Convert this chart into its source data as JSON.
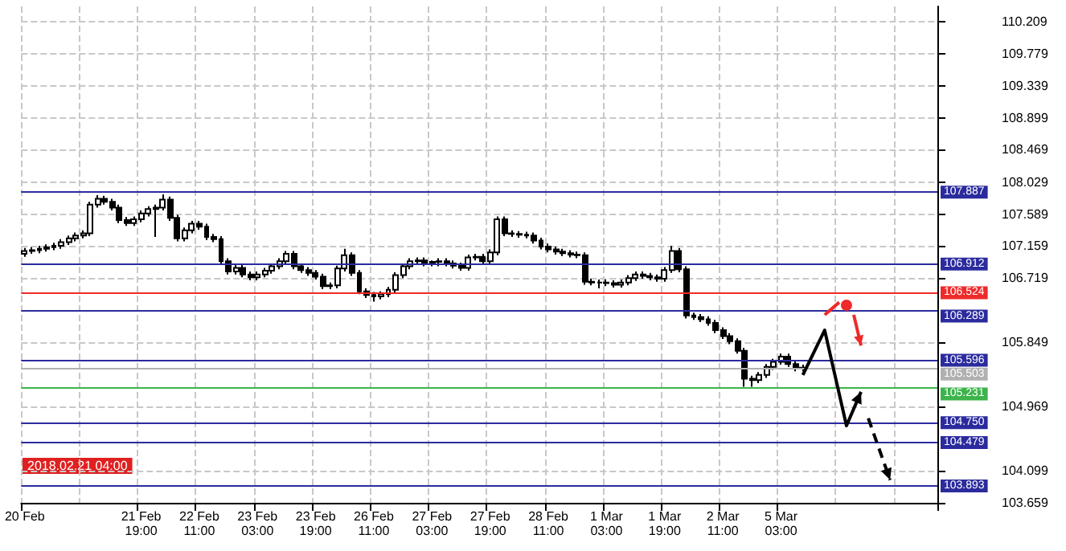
{
  "chart_data": {
    "type": "candlestick",
    "color": "#000000",
    "categories": [
      "20 Feb",
      null,
      null,
      null,
      null,
      null,
      null,
      null,
      null,
      null,
      null,
      null,
      null,
      null,
      null,
      null,
      "21 Feb 19:00",
      null,
      null,
      null,
      null,
      null,
      null,
      null,
      "22 Feb 11:00",
      null,
      null,
      null,
      null,
      null,
      null,
      null,
      "23 Feb 03:00",
      null,
      null,
      null,
      null,
      null,
      null,
      null,
      "23 Feb 19:00",
      null,
      null,
      null,
      null,
      null,
      null,
      null,
      "26 Feb 11:00",
      null,
      null,
      null,
      null,
      null,
      null,
      null,
      "27 Feb 03:00",
      null,
      null,
      null,
      null,
      null,
      null,
      null,
      "27 Feb 19:00",
      null,
      null,
      null,
      null,
      null,
      null,
      null,
      "28 Feb 11:00",
      null,
      null,
      null,
      null,
      null,
      null,
      null,
      "1 Mar 03:00",
      null,
      null,
      null,
      null,
      null,
      null,
      null,
      "1 Mar 19:00",
      null,
      null,
      null,
      null,
      null,
      null,
      null,
      "2 Mar 11:00",
      null,
      null,
      null,
      null,
      null,
      null,
      null,
      "5 Mar 03:00",
      null,
      null,
      null,
      null,
      null,
      null,
      null,
      null,
      null,
      null,
      null,
      null,
      null,
      null,
      null,
      null,
      null,
      null,
      null,
      null,
      null
    ],
    "ohlc": [
      [
        107.05,
        107.13,
        107.01,
        107.09
      ],
      [
        107.09,
        107.14,
        107.05,
        107.1
      ],
      [
        107.1,
        107.16,
        107.06,
        107.12
      ],
      [
        107.12,
        107.18,
        107.08,
        107.14
      ],
      [
        107.14,
        107.2,
        107.1,
        107.16
      ],
      [
        107.16,
        107.25,
        107.12,
        107.21
      ],
      [
        107.21,
        107.3,
        107.17,
        107.26
      ],
      [
        107.26,
        107.34,
        107.22,
        107.3
      ],
      [
        107.3,
        107.37,
        107.26,
        107.33
      ],
      [
        107.33,
        107.76,
        107.29,
        107.72
      ],
      [
        107.72,
        107.85,
        107.68,
        107.8
      ],
      [
        107.8,
        107.84,
        107.72,
        107.76
      ],
      [
        107.76,
        107.8,
        107.64,
        107.68
      ],
      [
        107.68,
        107.72,
        107.47,
        107.51
      ],
      [
        107.51,
        107.55,
        107.43,
        107.47
      ],
      [
        107.47,
        107.56,
        107.43,
        107.52
      ],
      [
        107.52,
        107.64,
        107.48,
        107.6
      ],
      [
        107.6,
        107.7,
        107.56,
        107.66
      ],
      [
        107.66,
        107.72,
        107.28,
        107.68
      ],
      [
        107.68,
        107.86,
        107.64,
        107.79
      ],
      [
        107.79,
        107.83,
        107.5,
        107.54
      ],
      [
        107.54,
        107.58,
        107.22,
        107.26
      ],
      [
        107.26,
        107.41,
        107.22,
        107.37
      ],
      [
        107.37,
        107.5,
        107.33,
        107.46
      ],
      [
        107.46,
        107.5,
        107.38,
        107.42
      ],
      [
        107.42,
        107.46,
        107.24,
        107.28
      ],
      [
        107.28,
        107.32,
        107.21,
        107.25
      ],
      [
        107.25,
        107.29,
        106.91,
        106.95
      ],
      [
        106.95,
        106.99,
        106.77,
        106.81
      ],
      [
        106.81,
        106.9,
        106.77,
        106.86
      ],
      [
        106.86,
        106.9,
        106.73,
        106.77
      ],
      [
        106.77,
        106.81,
        106.69,
        106.73
      ],
      [
        106.73,
        106.81,
        106.69,
        106.77
      ],
      [
        106.77,
        106.86,
        106.73,
        106.82
      ],
      [
        106.82,
        106.92,
        106.78,
        106.88
      ],
      [
        106.88,
        106.99,
        106.84,
        106.95
      ],
      [
        106.95,
        107.09,
        106.91,
        107.05
      ],
      [
        107.05,
        107.09,
        106.84,
        106.88
      ],
      [
        106.88,
        106.92,
        106.79,
        106.83
      ],
      [
        106.83,
        106.87,
        106.75,
        106.79
      ],
      [
        106.79,
        106.83,
        106.7,
        106.74
      ],
      [
        106.74,
        106.78,
        106.57,
        106.61
      ],
      [
        106.61,
        106.66,
        106.57,
        106.62
      ],
      [
        106.62,
        106.89,
        106.58,
        106.85
      ],
      [
        106.85,
        107.12,
        106.81,
        107.03
      ],
      [
        107.03,
        107.07,
        106.75,
        106.79
      ],
      [
        106.79,
        106.83,
        106.5,
        106.54
      ],
      [
        106.54,
        106.58,
        106.45,
        106.49
      ],
      [
        106.49,
        106.53,
        106.4,
        106.47
      ],
      [
        106.47,
        106.54,
        106.43,
        106.5
      ],
      [
        106.5,
        106.6,
        106.46,
        106.56
      ],
      [
        106.56,
        106.8,
        106.52,
        106.76
      ],
      [
        106.76,
        106.92,
        106.72,
        106.88
      ],
      [
        106.88,
        106.99,
        106.84,
        106.95
      ],
      [
        106.95,
        107.0,
        106.91,
        106.96
      ],
      [
        106.96,
        107.0,
        106.88,
        106.92
      ],
      [
        106.92,
        106.96,
        106.88,
        106.94
      ],
      [
        106.94,
        106.99,
        106.88,
        106.95
      ],
      [
        106.95,
        106.99,
        106.88,
        106.92
      ],
      [
        106.92,
        106.96,
        106.85,
        106.89
      ],
      [
        106.89,
        106.93,
        106.82,
        106.86
      ],
      [
        106.86,
        107.04,
        106.82,
        107.0
      ],
      [
        107.0,
        107.05,
        106.96,
        107.01
      ],
      [
        107.01,
        107.05,
        106.91,
        106.95
      ],
      [
        106.95,
        107.11,
        106.91,
        107.07
      ],
      [
        107.07,
        107.56,
        107.03,
        107.52
      ],
      [
        107.52,
        107.56,
        107.29,
        107.33
      ],
      [
        107.33,
        107.37,
        107.28,
        107.32
      ],
      [
        107.32,
        107.36,
        107.27,
        107.31
      ],
      [
        107.31,
        107.35,
        107.26,
        107.3
      ],
      [
        107.3,
        107.34,
        107.19,
        107.23
      ],
      [
        107.23,
        107.27,
        107.11,
        107.15
      ],
      [
        107.15,
        107.19,
        107.07,
        107.11
      ],
      [
        107.11,
        107.15,
        107.04,
        107.08
      ],
      [
        107.08,
        107.12,
        107.02,
        107.06
      ],
      [
        107.06,
        107.1,
        107.0,
        107.04
      ],
      [
        107.04,
        107.08,
        106.99,
        107.03
      ],
      [
        107.03,
        107.07,
        106.63,
        106.67
      ],
      [
        106.67,
        106.71,
        106.62,
        106.66
      ],
      [
        106.66,
        106.7,
        106.58,
        106.66
      ],
      [
        106.66,
        106.7,
        106.61,
        106.65
      ],
      [
        106.65,
        106.69,
        106.59,
        106.63
      ],
      [
        106.63,
        106.7,
        106.59,
        106.66
      ],
      [
        106.66,
        106.76,
        106.62,
        106.72
      ],
      [
        106.72,
        106.81,
        106.68,
        106.77
      ],
      [
        106.77,
        106.81,
        106.71,
        106.75
      ],
      [
        106.75,
        106.79,
        106.69,
        106.73
      ],
      [
        106.73,
        106.77,
        106.67,
        106.71
      ],
      [
        106.71,
        106.87,
        106.67,
        106.83
      ],
      [
        106.83,
        107.16,
        106.79,
        107.09
      ],
      [
        107.09,
        107.13,
        106.8,
        106.84
      ],
      [
        106.84,
        106.88,
        106.17,
        106.21
      ],
      [
        106.21,
        106.25,
        106.15,
        106.19
      ],
      [
        106.19,
        106.23,
        106.12,
        106.16
      ],
      [
        106.16,
        106.2,
        106.07,
        106.11
      ],
      [
        106.11,
        106.15,
        105.97,
        106.01
      ],
      [
        106.01,
        106.05,
        105.89,
        105.93
      ],
      [
        105.93,
        105.97,
        105.82,
        105.86
      ],
      [
        105.86,
        105.9,
        105.69,
        105.73
      ],
      [
        105.73,
        105.77,
        105.24,
        105.35
      ],
      [
        105.35,
        105.39,
        105.24,
        105.33
      ],
      [
        105.33,
        105.44,
        105.29,
        105.4
      ],
      [
        105.4,
        105.55,
        105.36,
        105.51
      ],
      [
        105.51,
        105.62,
        105.47,
        105.58
      ],
      [
        105.58,
        105.69,
        105.54,
        105.65
      ],
      [
        105.65,
        105.69,
        105.51,
        105.55
      ],
      [
        105.55,
        105.59,
        105.45,
        105.49
      ],
      [
        105.49,
        105.54,
        105.45,
        105.5
      ],
      null,
      null,
      null,
      null,
      null,
      null,
      null,
      null,
      null,
      null,
      null,
      null,
      null,
      null,
      null,
      null,
      null,
      null
    ],
    "ylim": [
      103.659,
      110.42
    ],
    "yticks": [
      103.659,
      104.099,
      104.969,
      105.849,
      106.719,
      107.159,
      107.589,
      108.029,
      108.469,
      108.899,
      109.339,
      109.779,
      110.209
    ],
    "ref_lines": [
      {
        "axis": "y",
        "value": 107.887,
        "label": "107.887",
        "color": "#2b2b9e"
      },
      {
        "axis": "y",
        "value": 106.912,
        "label": "106.912",
        "color": "#2b2b9e"
      },
      {
        "axis": "y",
        "value": 106.524,
        "label": "106.524",
        "color": "#ee2a2a"
      },
      {
        "axis": "y",
        "value": 106.289,
        "label": "106.289",
        "color": "#2b2b9e"
      },
      {
        "axis": "y",
        "value": 105.596,
        "label": "105.596",
        "color": "#2b2b9e"
      },
      {
        "axis": "y",
        "value": 105.503,
        "label": "105.503",
        "color": "#b0b0b0"
      },
      {
        "axis": "y",
        "value": 105.231,
        "label": "105.231",
        "color": "#3cb44b"
      },
      {
        "axis": "y",
        "value": 104.75,
        "label": "104.750",
        "color": "#2b2b9e"
      },
      {
        "axis": "y",
        "value": 104.479,
        "label": "104.479",
        "color": "#2b2b9e"
      },
      {
        "axis": "y",
        "value": 103.893,
        "label": "103.893",
        "color": "#2b2b9e"
      }
    ],
    "annotations": [
      "2018.02.21 04:00"
    ],
    "grid": true
  }
}
